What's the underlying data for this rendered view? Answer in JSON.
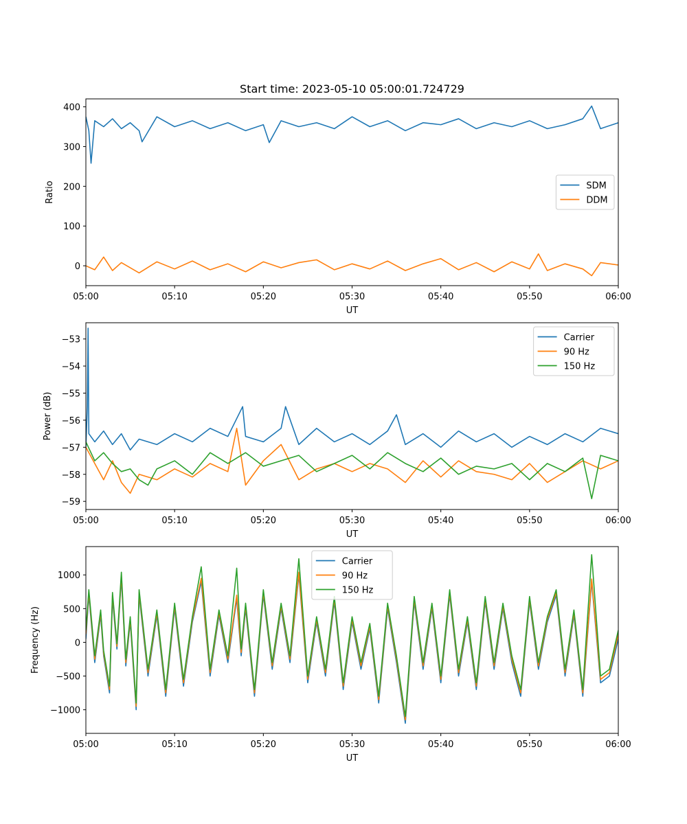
{
  "figure_title": "Start time: 2023-05-10 05:00:01.724729",
  "colors": {
    "c0": "#1f77b4",
    "c1": "#ff7f0e",
    "c2": "#2ca02c"
  },
  "chart_data": [
    {
      "type": "line",
      "title": "Start time: 2023-05-10 05:00:01.724729",
      "xlabel": "UT",
      "ylabel": "Ratio",
      "xlim": [
        "05:00",
        "06:00"
      ],
      "xticks": [
        "05:00",
        "05:10",
        "05:20",
        "05:30",
        "05:40",
        "05:50",
        "06:00"
      ],
      "ylim": [
        -50,
        420
      ],
      "yticks": [
        0,
        100,
        200,
        300,
        400
      ],
      "ytick_labels": [
        "0",
        "100",
        "200",
        "300",
        "400"
      ],
      "legend": "center-right",
      "grid": false,
      "series": [
        {
          "name": "SDM",
          "color": "#1f77b4",
          "x": [
            "05:00",
            "05:00:20",
            "05:00:35",
            "05:01",
            "05:02",
            "05:03",
            "05:04",
            "05:05",
            "05:06",
            "05:06:20",
            "05:08",
            "05:10",
            "05:12",
            "05:14",
            "05:16",
            "05:18",
            "05:20",
            "05:20:40",
            "05:22",
            "05:24",
            "05:26",
            "05:28",
            "05:30",
            "05:32",
            "05:34",
            "05:36",
            "05:38",
            "05:40",
            "05:42",
            "05:44",
            "05:46",
            "05:48",
            "05:50",
            "05:52",
            "05:54",
            "05:56",
            "05:57",
            "05:58",
            "06:00"
          ],
          "values": [
            375,
            340,
            258,
            365,
            350,
            370,
            345,
            360,
            340,
            312,
            375,
            350,
            365,
            345,
            360,
            340,
            355,
            310,
            365,
            350,
            360,
            345,
            375,
            350,
            365,
            340,
            360,
            355,
            370,
            345,
            360,
            350,
            365,
            345,
            355,
            370,
            402,
            345,
            360
          ]
        },
        {
          "name": "DDM",
          "color": "#ff7f0e",
          "x": [
            "05:00",
            "05:01",
            "05:02",
            "05:03",
            "05:04",
            "05:06",
            "05:08",
            "05:10",
            "05:12",
            "05:14",
            "05:16",
            "05:18",
            "05:20",
            "05:22",
            "05:24",
            "05:26",
            "05:28",
            "05:30",
            "05:32",
            "05:34",
            "05:36",
            "05:38",
            "05:40",
            "05:42",
            "05:44",
            "05:46",
            "05:48",
            "05:50",
            "05:51",
            "05:52",
            "05:54",
            "05:56",
            "05:57",
            "05:58",
            "06:00"
          ],
          "values": [
            0,
            -10,
            22,
            -12,
            8,
            -18,
            10,
            -8,
            12,
            -10,
            5,
            -15,
            10,
            -5,
            8,
            15,
            -10,
            5,
            -8,
            12,
            -12,
            5,
            18,
            -10,
            8,
            -15,
            10,
            -8,
            30,
            -12,
            5,
            -8,
            -25,
            8,
            2
          ]
        }
      ]
    },
    {
      "type": "line",
      "xlabel": "UT",
      "ylabel": "Power (dB)",
      "xlim": [
        "05:00",
        "06:00"
      ],
      "xticks": [
        "05:00",
        "05:10",
        "05:20",
        "05:30",
        "05:40",
        "05:50",
        "06:00"
      ],
      "ylim": [
        -59.3,
        -52.4
      ],
      "yticks": [
        -59,
        -58,
        -57,
        -56,
        -55,
        -54,
        -53
      ],
      "ytick_labels": [
        "−59",
        "−58",
        "−57",
        "−56",
        "−55",
        "−54",
        "−53"
      ],
      "legend": "top-right",
      "grid": false,
      "series": [
        {
          "name": "Carrier",
          "color": "#1f77b4",
          "x": [
            "05:00",
            "05:00:10",
            "05:00:15",
            "05:00:20",
            "05:01",
            "05:02",
            "05:03",
            "05:04",
            "05:05",
            "05:06",
            "05:08",
            "05:10",
            "05:12",
            "05:14",
            "05:16",
            "05:17:40",
            "05:18",
            "05:20",
            "05:22",
            "05:22:30",
            "05:24",
            "05:26",
            "05:28",
            "05:30",
            "05:32",
            "05:34",
            "05:35",
            "05:36",
            "05:38",
            "05:40",
            "05:42",
            "05:44",
            "05:46",
            "05:48",
            "05:50",
            "05:52",
            "05:54",
            "05:56",
            "05:58",
            "06:00"
          ],
          "values": [
            -57.0,
            -55.5,
            -52.6,
            -56.5,
            -56.8,
            -56.4,
            -56.9,
            -56.5,
            -57.1,
            -56.7,
            -56.9,
            -56.5,
            -56.8,
            -56.3,
            -56.6,
            -55.5,
            -56.6,
            -56.8,
            -56.3,
            -55.5,
            -56.9,
            -56.3,
            -56.8,
            -56.5,
            -56.9,
            -56.4,
            -55.8,
            -56.9,
            -56.5,
            -57.0,
            -56.4,
            -56.8,
            -56.5,
            -57.0,
            -56.6,
            -56.9,
            -56.5,
            -56.8,
            -56.3,
            -56.5
          ]
        },
        {
          "name": "90 Hz",
          "color": "#ff7f0e",
          "x": [
            "05:00",
            "05:01",
            "05:02",
            "05:03",
            "05:04",
            "05:05",
            "05:06",
            "05:08",
            "05:10",
            "05:12",
            "05:14",
            "05:16",
            "05:17",
            "05:18",
            "05:20",
            "05:22",
            "05:24",
            "05:26",
            "05:28",
            "05:30",
            "05:32",
            "05:34",
            "05:36",
            "05:38",
            "05:40",
            "05:42",
            "05:44",
            "05:46",
            "05:48",
            "05:50",
            "05:52",
            "05:54",
            "05:56",
            "05:58",
            "06:00"
          ],
          "values": [
            -57.0,
            -57.6,
            -58.2,
            -57.5,
            -58.3,
            -58.7,
            -58.0,
            -58.2,
            -57.8,
            -58.1,
            -57.6,
            -57.9,
            -56.3,
            -58.4,
            -57.5,
            -56.9,
            -58.2,
            -57.8,
            -57.6,
            -57.9,
            -57.6,
            -57.8,
            -58.3,
            -57.5,
            -58.1,
            -57.5,
            -57.9,
            -58.0,
            -58.2,
            -57.6,
            -58.3,
            -57.9,
            -57.5,
            -57.8,
            -57.5
          ]
        },
        {
          "name": "150 Hz",
          "color": "#2ca02c",
          "x": [
            "05:00",
            "05:01",
            "05:02",
            "05:03",
            "05:04",
            "05:05",
            "05:06",
            "05:07",
            "05:08",
            "05:10",
            "05:12",
            "05:14",
            "05:16",
            "05:18",
            "05:20",
            "05:22",
            "05:24",
            "05:26",
            "05:28",
            "05:30",
            "05:32",
            "05:34",
            "05:36",
            "05:38",
            "05:40",
            "05:42",
            "05:44",
            "05:46",
            "05:48",
            "05:50",
            "05:52",
            "05:54",
            "05:56",
            "05:57",
            "05:58",
            "06:00"
          ],
          "values": [
            -56.8,
            -57.5,
            -57.2,
            -57.6,
            -57.9,
            -57.8,
            -58.2,
            -58.4,
            -57.8,
            -57.5,
            -58.0,
            -57.2,
            -57.6,
            -57.2,
            -57.7,
            -57.5,
            -57.3,
            -57.9,
            -57.6,
            -57.3,
            -57.8,
            -57.2,
            -57.6,
            -57.9,
            -57.4,
            -58.0,
            -57.7,
            -57.8,
            -57.6,
            -58.2,
            -57.6,
            -57.9,
            -57.4,
            -58.9,
            -57.3,
            -57.5
          ]
        }
      ]
    },
    {
      "type": "line",
      "xlabel": "UT",
      "ylabel": "Frequency (Hz)",
      "xlim": [
        "05:00",
        "06:00"
      ],
      "xticks": [
        "05:00",
        "05:10",
        "05:20",
        "05:30",
        "05:40",
        "05:50",
        "06:00"
      ],
      "ylim": [
        -1350,
        1420
      ],
      "yticks": [
        -1000,
        -500,
        0,
        500,
        1000
      ],
      "ytick_labels": [
        "−1000",
        "−500",
        "0",
        "500",
        "1000"
      ],
      "legend": "top-center",
      "grid": false,
      "series": [
        {
          "name": "Carrier",
          "color": "#1f77b4",
          "x": [
            "05:00",
            "05:00:20",
            "05:01",
            "05:01:40",
            "05:02",
            "05:02:40",
            "05:03",
            "05:03:30",
            "05:04",
            "05:04:30",
            "05:05",
            "05:05:40",
            "05:06",
            "05:07",
            "05:08",
            "05:09",
            "05:10",
            "05:11",
            "05:12",
            "05:13",
            "05:14",
            "05:15",
            "05:16",
            "05:17",
            "05:17:30",
            "05:18",
            "05:19",
            "05:20",
            "05:21",
            "05:22",
            "05:23",
            "05:24",
            "05:25",
            "05:26",
            "05:27",
            "05:28",
            "05:29",
            "05:30",
            "05:31",
            "05:32",
            "05:33",
            "05:34",
            "05:35",
            "05:36",
            "05:37",
            "05:38",
            "05:39",
            "05:40",
            "05:41",
            "05:42",
            "05:43",
            "05:44",
            "05:45",
            "05:46",
            "05:47",
            "05:48",
            "05:49",
            "05:50",
            "05:51",
            "05:52",
            "05:53",
            "05:54",
            "05:55",
            "05:56",
            "05:57",
            "05:58",
            "05:59",
            "06:00"
          ],
          "values": [
            50,
            700,
            -300,
            400,
            -200,
            -750,
            650,
            -100,
            950,
            -350,
            300,
            -1000,
            700,
            -500,
            400,
            -800,
            500,
            -650,
            300,
            900,
            -500,
            400,
            -300,
            650,
            -200,
            500,
            -800,
            700,
            -400,
            500,
            -300,
            1000,
            -600,
            300,
            -500,
            600,
            -700,
            300,
            -400,
            200,
            -900,
            500,
            -300,
            -1200,
            600,
            -400,
            500,
            -600,
            700,
            -500,
            300,
            -700,
            600,
            -400,
            500,
            -300,
            -800,
            600,
            -400,
            300,
            700,
            -500,
            400,
            -800,
            900,
            -600,
            -500,
            50
          ]
        },
        {
          "name": "90 Hz",
          "color": "#ff7f0e",
          "x": [
            "05:00",
            "05:00:20",
            "05:01",
            "05:01:40",
            "05:02",
            "05:02:40",
            "05:03",
            "05:03:30",
            "05:04",
            "05:04:30",
            "05:05",
            "05:05:40",
            "05:06",
            "05:07",
            "05:08",
            "05:09",
            "05:10",
            "05:11",
            "05:12",
            "05:13",
            "05:14",
            "05:15",
            "05:16",
            "05:17",
            "05:17:30",
            "05:18",
            "05:19",
            "05:20",
            "05:21",
            "05:22",
            "05:23",
            "05:24",
            "05:25",
            "05:26",
            "05:27",
            "05:28",
            "05:29",
            "05:30",
            "05:31",
            "05:32",
            "05:33",
            "05:34",
            "05:35",
            "05:36",
            "05:37",
            "05:38",
            "05:39",
            "05:40",
            "05:41",
            "05:42",
            "05:43",
            "05:44",
            "05:45",
            "05:46",
            "05:47",
            "05:48",
            "05:49",
            "05:50",
            "05:51",
            "05:52",
            "05:53",
            "05:54",
            "05:55",
            "05:56",
            "05:57",
            "05:58",
            "05:59",
            "06:00"
          ],
          "values": [
            120,
            740,
            -250,
            440,
            -160,
            -700,
            700,
            -60,
            990,
            -300,
            340,
            -950,
            740,
            -450,
            440,
            -750,
            540,
            -600,
            340,
            950,
            -450,
            440,
            -250,
            700,
            -150,
            540,
            -750,
            740,
            -350,
            540,
            -250,
            1040,
            -550,
            340,
            -450,
            640,
            -650,
            340,
            -350,
            240,
            -850,
            540,
            -250,
            -1150,
            640,
            -350,
            540,
            -550,
            740,
            -450,
            340,
            -650,
            640,
            -350,
            540,
            -250,
            -750,
            640,
            -350,
            340,
            740,
            -450,
            440,
            -750,
            940,
            -550,
            -450,
            120
          ]
        },
        {
          "name": "150 Hz",
          "color": "#2ca02c",
          "x": [
            "05:00",
            "05:00:20",
            "05:01",
            "05:01:40",
            "05:02",
            "05:02:40",
            "05:03",
            "05:03:30",
            "05:04",
            "05:04:30",
            "05:05",
            "05:05:40",
            "05:06",
            "05:07",
            "05:08",
            "05:09",
            "05:10",
            "05:11",
            "05:12",
            "05:13",
            "05:14",
            "05:15",
            "05:16",
            "05:17",
            "05:17:30",
            "05:18",
            "05:19",
            "05:20",
            "05:21",
            "05:22",
            "05:23",
            "05:24",
            "05:25",
            "05:26",
            "05:27",
            "05:28",
            "05:29",
            "05:30",
            "05:31",
            "05:32",
            "05:33",
            "05:34",
            "05:35",
            "05:36",
            "05:37",
            "05:38",
            "05:39",
            "05:40",
            "05:41",
            "05:42",
            "05:43",
            "05:44",
            "05:45",
            "05:46",
            "05:47",
            "05:48",
            "05:49",
            "05:50",
            "05:51",
            "05:52",
            "05:53",
            "05:54",
            "05:55",
            "05:56",
            "05:57",
            "05:58",
            "05:59",
            "06:00"
          ],
          "values": [
            180,
            780,
            -200,
            480,
            -120,
            -650,
            740,
            -20,
            1040,
            -250,
            380,
            -900,
            780,
            -400,
            480,
            -700,
            580,
            -550,
            380,
            1120,
            -400,
            480,
            -200,
            1100,
            -100,
            580,
            -700,
            780,
            -300,
            580,
            -200,
            1240,
            -500,
            380,
            -400,
            680,
            -600,
            380,
            -300,
            280,
            -800,
            580,
            -200,
            -1100,
            680,
            -300,
            580,
            -500,
            780,
            -400,
            380,
            -600,
            680,
            -300,
            580,
            -200,
            -700,
            680,
            -300,
            380,
            780,
            -400,
            480,
            -700,
            1300,
            -500,
            -400,
            180
          ]
        }
      ]
    }
  ]
}
